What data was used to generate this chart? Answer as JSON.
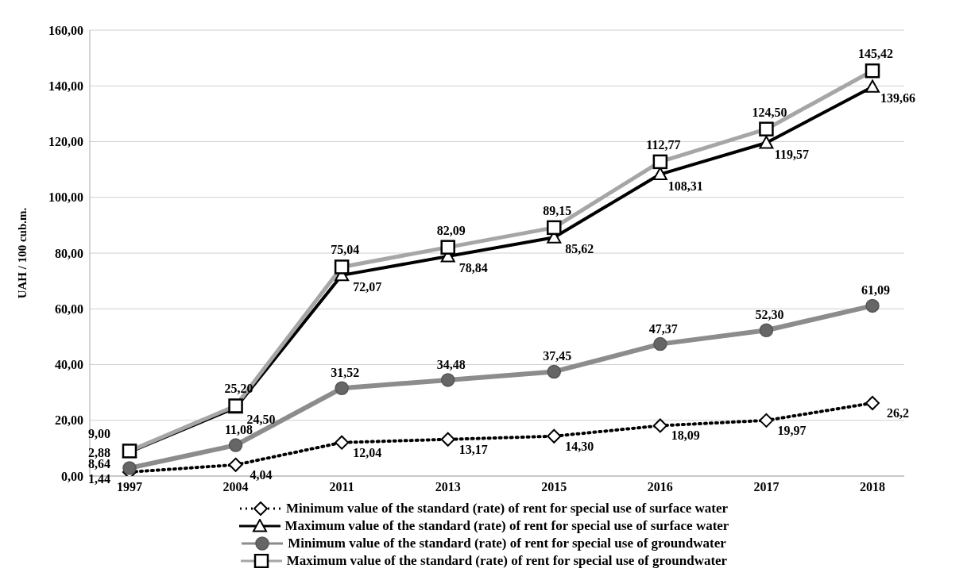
{
  "chart_data": {
    "type": "line",
    "ylabel": "UAH / 100 cub.m.",
    "categories": [
      "1997",
      "2004",
      "2011",
      "2013",
      "2015",
      "2016",
      "2017",
      "2018"
    ],
    "ylim": [
      0,
      160
    ],
    "yticks": [
      {
        "value": 0,
        "label": "0,00"
      },
      {
        "value": 20,
        "label": "20,00"
      },
      {
        "value": 40,
        "label": "40,00"
      },
      {
        "value": 60,
        "label": "60,00"
      },
      {
        "value": 80,
        "label": "80,00"
      },
      {
        "value": 100,
        "label": "100,00"
      },
      {
        "value": 120,
        "label": "120,00"
      },
      {
        "value": 140,
        "label": "140,00"
      },
      {
        "value": 160,
        "label": "160,00"
      }
    ],
    "grid": "y",
    "legend": "bottom",
    "series": [
      {
        "name": "Minimum value of the standard (rate) of rent for special use of surface water",
        "color": "#000000",
        "marker": "diamond",
        "line_style": "dotted",
        "values": [
          1.44,
          4.04,
          12.04,
          13.17,
          14.3,
          18.09,
          19.97,
          26.2
        ],
        "value_labels": [
          "1,44",
          "4,04",
          "12,04",
          "13,17",
          "14,30",
          "18,09",
          "19,97",
          "26,2"
        ]
      },
      {
        "name": "Maximum value of the standard (rate) of rent for special use of surface water",
        "color": "#000000",
        "marker": "triangle",
        "line_style": "solid",
        "values": [
          8.64,
          24.5,
          72.07,
          78.84,
          85.62,
          108.31,
          119.57,
          139.66
        ],
        "value_labels": [
          "8,64",
          "24,50",
          "72,07",
          "78,84",
          "85,62",
          "108,31",
          "119,57",
          "139,66"
        ]
      },
      {
        "name": "Minimum value of the standard (rate) of rent for special use of groundwater",
        "color": "#8c8c8c",
        "marker": "circle",
        "line_style": "solid",
        "values": [
          2.88,
          11.08,
          31.52,
          34.48,
          37.45,
          47.37,
          52.3,
          61.09
        ],
        "value_labels": [
          "2,88",
          "11,08",
          "31,52",
          "34,48",
          "37,45",
          "47,37",
          "52,30",
          "61,09"
        ]
      },
      {
        "name": "Maximum value of the standard (rate) of rent for special use of groundwater",
        "color": "#a6a6a6",
        "marker": "square",
        "line_style": "solid",
        "values": [
          9.0,
          25.2,
          75.04,
          82.09,
          89.15,
          112.77,
          124.5,
          145.42
        ],
        "value_labels": [
          "9,00",
          "25,20",
          "75,04",
          "82,09",
          "89,15",
          "112,77",
          "124,50",
          "145,42"
        ]
      }
    ]
  }
}
